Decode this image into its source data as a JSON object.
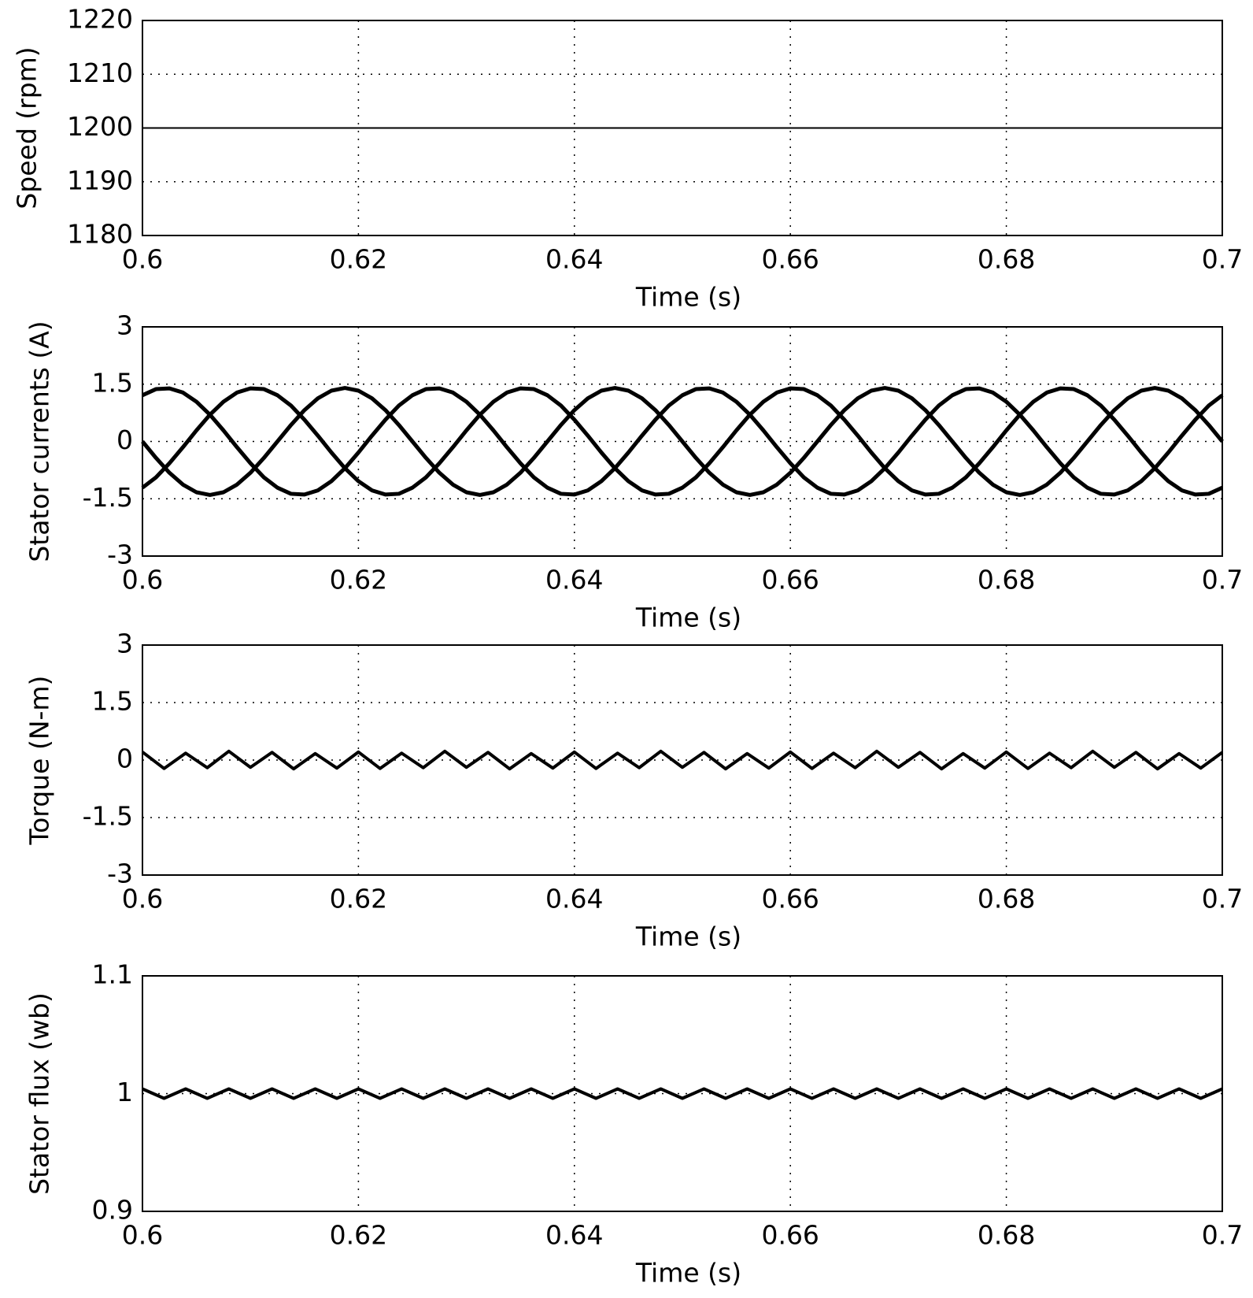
{
  "chart_data": [
    {
      "type": "line",
      "ylabel": "Speed (rpm)",
      "xlabel": "Time (s)",
      "x": [
        0.6,
        0.7
      ],
      "series": [
        {
          "color": "#000000",
          "values": [
            1200,
            1200
          ]
        }
      ],
      "xlim": [
        0.6,
        0.7
      ],
      "xticks": [
        0.6,
        0.62,
        0.64,
        0.66,
        0.68,
        0.7
      ],
      "ylim": [
        1180,
        1220
      ],
      "yticks": [
        1180,
        1190,
        1200,
        1210,
        1220
      ],
      "grid": true
    },
    {
      "type": "line",
      "ylabel": "Stator currents (A)",
      "xlabel": "Time (s)",
      "x": [
        0.6,
        0.60125,
        0.6025,
        0.60375,
        0.605,
        0.60625,
        0.6075,
        0.60875,
        0.61,
        0.61125,
        0.6125,
        0.61375,
        0.615,
        0.61625,
        0.6175,
        0.61875,
        0.62,
        0.62125,
        0.6225,
        0.62375,
        0.625,
        0.62625,
        0.6275,
        0.62875,
        0.63,
        0.63125,
        0.6325,
        0.63375,
        0.635,
        0.63625,
        0.6375,
        0.63875,
        0.64,
        0.64125,
        0.6425,
        0.64375,
        0.645,
        0.64625,
        0.6475,
        0.64875,
        0.65,
        0.65125,
        0.6525,
        0.65375,
        0.655,
        0.65625,
        0.6575,
        0.65875,
        0.66,
        0.66125,
        0.6625,
        0.66375,
        0.665,
        0.66625,
        0.6675,
        0.66875,
        0.67,
        0.67125,
        0.6725,
        0.67375,
        0.675,
        0.67625,
        0.6775,
        0.67875,
        0.68,
        0.68125,
        0.6825,
        0.68375,
        0.685,
        0.68625,
        0.6875,
        0.68875,
        0.69,
        0.69125,
        0.6925,
        0.69375,
        0.695,
        0.69625,
        0.6975,
        0.69875,
        0.7
      ],
      "series": [
        {
          "color": "#000000",
          "values": [
            0,
            -0.43,
            -0.82,
            -1.13,
            -1.33,
            -1.4,
            -1.33,
            -1.13,
            -0.82,
            -0.43,
            0,
            0.43,
            0.82,
            1.13,
            1.33,
            1.4,
            1.33,
            1.13,
            0.82,
            0.43,
            0,
            -0.43,
            -0.82,
            -1.13,
            -1.33,
            -1.4,
            -1.33,
            -1.13,
            -0.82,
            -0.43,
            0,
            0.43,
            0.82,
            1.13,
            1.33,
            1.4,
            1.33,
            1.13,
            0.82,
            0.43,
            0,
            -0.43,
            -0.82,
            -1.13,
            -1.33,
            -1.4,
            -1.33,
            -1.13,
            -0.82,
            -0.43,
            0,
            0.43,
            0.82,
            1.13,
            1.33,
            1.4,
            1.33,
            1.13,
            0.82,
            0.43,
            0,
            -0.43,
            -0.82,
            -1.13,
            -1.33,
            -1.4,
            -1.33,
            -1.13,
            -0.82,
            -0.43,
            0,
            0.43,
            0.82,
            1.13,
            1.33,
            1.4,
            1.33,
            1.13,
            0.82,
            0.43,
            0
          ]
        },
        {
          "color": "#000000",
          "values": [
            -1.21,
            -0.94,
            -0.57,
            -0.15,
            0.29,
            0.7,
            1.04,
            1.28,
            1.39,
            1.37,
            1.21,
            0.94,
            0.57,
            0.15,
            -0.29,
            -0.7,
            -1.04,
            -1.28,
            -1.39,
            -1.37,
            -1.21,
            -0.94,
            -0.57,
            -0.15,
            0.29,
            0.7,
            1.04,
            1.28,
            1.39,
            1.37,
            1.21,
            0.94,
            0.57,
            0.15,
            -0.29,
            -0.7,
            -1.04,
            -1.28,
            -1.39,
            -1.37,
            -1.21,
            -0.94,
            -0.57,
            -0.15,
            0.29,
            0.7,
            1.04,
            1.28,
            1.39,
            1.37,
            1.21,
            0.94,
            0.57,
            0.15,
            -0.29,
            -0.7,
            -1.04,
            -1.28,
            -1.39,
            -1.37,
            -1.21,
            -0.94,
            -0.57,
            -0.15,
            0.29,
            0.7,
            1.04,
            1.28,
            1.39,
            1.37,
            1.21,
            0.94,
            0.57,
            0.15,
            -0.29,
            -0.7,
            -1.04,
            -1.28,
            -1.39,
            -1.37,
            -1.21
          ]
        },
        {
          "color": "#000000",
          "values": [
            1.21,
            1.37,
            1.39,
            1.28,
            1.04,
            0.7,
            0.29,
            -0.15,
            -0.57,
            -0.94,
            -1.21,
            -1.37,
            -1.39,
            -1.28,
            -1.04,
            -0.7,
            -0.29,
            0.15,
            0.57,
            0.94,
            1.21,
            1.37,
            1.39,
            1.28,
            1.04,
            0.7,
            0.29,
            -0.15,
            -0.57,
            -0.94,
            -1.21,
            -1.37,
            -1.39,
            -1.28,
            -1.04,
            -0.7,
            -0.29,
            0.15,
            0.57,
            0.94,
            1.21,
            1.37,
            1.39,
            1.28,
            1.04,
            0.7,
            0.29,
            -0.15,
            -0.57,
            -0.94,
            -1.21,
            -1.37,
            -1.39,
            -1.28,
            -1.04,
            -0.7,
            -0.29,
            0.15,
            0.57,
            0.94,
            1.21,
            1.37,
            1.39,
            1.28,
            1.04,
            0.7,
            0.29,
            -0.15,
            -0.57,
            -0.94,
            -1.21,
            -1.37,
            -1.39,
            -1.28,
            -1.04,
            -0.7,
            -0.29,
            0.15,
            0.57,
            0.94,
            1.21
          ]
        }
      ],
      "xlim": [
        0.6,
        0.7
      ],
      "xticks": [
        0.6,
        0.62,
        0.64,
        0.66,
        0.68,
        0.7
      ],
      "ylim": [
        -3,
        3
      ],
      "yticks": [
        -3,
        -1.5,
        0,
        1.5,
        3
      ],
      "grid": true
    },
    {
      "type": "line",
      "ylabel": "Torque (N-m)",
      "xlabel": "Time (s)",
      "x": [
        0.6,
        0.602,
        0.604,
        0.606,
        0.608,
        0.61,
        0.612,
        0.614,
        0.616,
        0.618,
        0.62,
        0.622,
        0.624,
        0.626,
        0.628,
        0.63,
        0.632,
        0.634,
        0.636,
        0.638,
        0.64,
        0.642,
        0.644,
        0.646,
        0.648,
        0.65,
        0.652,
        0.654,
        0.656,
        0.658,
        0.66,
        0.662,
        0.664,
        0.666,
        0.668,
        0.67,
        0.672,
        0.674,
        0.676,
        0.678,
        0.68,
        0.682,
        0.684,
        0.686,
        0.688,
        0.69,
        0.692,
        0.694,
        0.696,
        0.698,
        0.7
      ],
      "series": [
        {
          "color": "#000000",
          "values": [
            0.21,
            -0.22,
            0.18,
            -0.2,
            0.23,
            -0.19,
            0.2,
            -0.23,
            0.17,
            -0.21,
            0.21,
            -0.22,
            0.18,
            -0.2,
            0.23,
            -0.19,
            0.2,
            -0.23,
            0.17,
            -0.21,
            0.21,
            -0.22,
            0.18,
            -0.2,
            0.23,
            -0.19,
            0.2,
            -0.23,
            0.17,
            -0.21,
            0.21,
            -0.22,
            0.18,
            -0.2,
            0.23,
            -0.19,
            0.2,
            -0.23,
            0.17,
            -0.21,
            0.21,
            -0.22,
            0.18,
            -0.2,
            0.23,
            -0.19,
            0.2,
            -0.23,
            0.17,
            -0.21,
            0.2
          ]
        }
      ],
      "xlim": [
        0.6,
        0.7
      ],
      "xticks": [
        0.6,
        0.62,
        0.64,
        0.66,
        0.68,
        0.7
      ],
      "ylim": [
        -3,
        3
      ],
      "yticks": [
        -3,
        -1.5,
        0,
        1.5,
        3
      ],
      "grid": true
    },
    {
      "type": "line",
      "ylabel": "Stator flux (wb)",
      "xlabel": "Time (s)",
      "x": [
        0.6,
        0.602,
        0.604,
        0.606,
        0.608,
        0.61,
        0.612,
        0.614,
        0.616,
        0.618,
        0.62,
        0.622,
        0.624,
        0.626,
        0.628,
        0.63,
        0.632,
        0.634,
        0.636,
        0.638,
        0.64,
        0.642,
        0.644,
        0.646,
        0.648,
        0.65,
        0.652,
        0.654,
        0.656,
        0.658,
        0.66,
        0.662,
        0.664,
        0.666,
        0.668,
        0.67,
        0.672,
        0.674,
        0.676,
        0.678,
        0.68,
        0.682,
        0.684,
        0.686,
        0.688,
        0.69,
        0.692,
        0.694,
        0.696,
        0.698,
        0.7
      ],
      "series": [
        {
          "color": "#000000",
          "values": [
            1.004,
            0.996,
            1.004,
            0.996,
            1.004,
            0.996,
            1.004,
            0.996,
            1.004,
            0.996,
            1.004,
            0.996,
            1.004,
            0.996,
            1.004,
            0.996,
            1.004,
            0.996,
            1.004,
            0.996,
            1.004,
            0.996,
            1.004,
            0.996,
            1.004,
            0.996,
            1.004,
            0.996,
            1.004,
            0.996,
            1.004,
            0.996,
            1.004,
            0.996,
            1.004,
            0.996,
            1.004,
            0.996,
            1.004,
            0.996,
            1.004,
            0.996,
            1.004,
            0.996,
            1.004,
            0.996,
            1.004,
            0.996,
            1.004,
            0.996,
            1.004
          ]
        }
      ],
      "xlim": [
        0.6,
        0.7
      ],
      "xticks": [
        0.6,
        0.62,
        0.64,
        0.66,
        0.68,
        0.7
      ],
      "ylim": [
        0.9,
        1.1
      ],
      "yticks": [
        0.9,
        1,
        1.1
      ],
      "grid": true
    }
  ]
}
